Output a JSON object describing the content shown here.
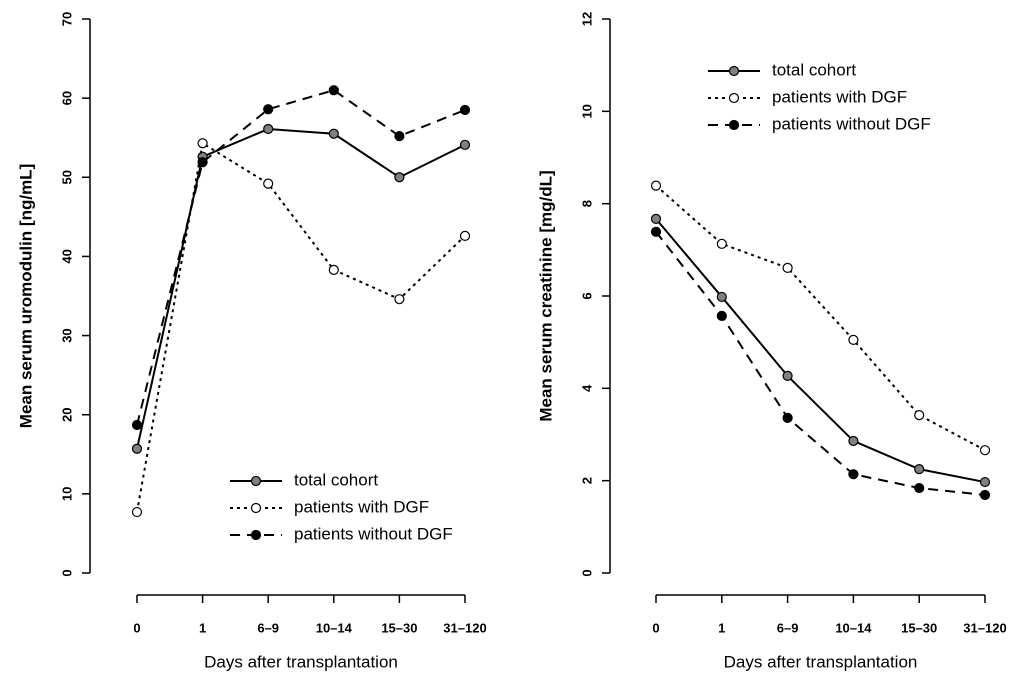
{
  "chart_data": [
    {
      "type": "line",
      "ylabel": "Mean serum uromodulin [ng/mL]",
      "xlabel": "Days after transplantation",
      "categories": [
        "0",
        "1",
        "6–9",
        "10–14",
        "15–30",
        "31–120"
      ],
      "ylim": [
        0,
        70
      ],
      "yticks": [
        0,
        10,
        20,
        30,
        40,
        50,
        60,
        70
      ],
      "legend": "lower right",
      "series": [
        {
          "name": "total cohort",
          "color": "#000000",
          "linestyle": "solid",
          "marker_fill": "#808080",
          "values": [
            15.7,
            52.6,
            56.1,
            55.5,
            50.0,
            54.1
          ]
        },
        {
          "name": "patients with DGF",
          "color": "#000000",
          "linestyle": "dotted",
          "marker_fill": "#ffffff",
          "values": [
            7.7,
            54.3,
            49.2,
            38.3,
            34.6,
            42.6
          ]
        },
        {
          "name": "patients without DGF",
          "color": "#000000",
          "linestyle": "dashed",
          "marker_fill": "#000000",
          "values": [
            18.7,
            51.9,
            58.6,
            61.0,
            55.2,
            58.5
          ]
        }
      ]
    },
    {
      "type": "line",
      "ylabel": "Mean serum creatinine [mg/dL]",
      "xlabel": "Days after transplantation",
      "categories": [
        "0",
        "1",
        "6–9",
        "10–14",
        "15–30",
        "31–120"
      ],
      "ylim": [
        0,
        12
      ],
      "yticks": [
        0,
        2,
        4,
        6,
        8,
        10,
        12
      ],
      "legend": "upper left",
      "series": [
        {
          "name": "total cohort",
          "color": "#000000",
          "linestyle": "solid",
          "marker_fill": "#808080",
          "values": [
            7.67,
            5.98,
            4.27,
            2.86,
            2.25,
            1.97
          ]
        },
        {
          "name": "patients with DGF",
          "color": "#000000",
          "linestyle": "dotted",
          "marker_fill": "#ffffff",
          "values": [
            8.39,
            7.13,
            6.61,
            5.05,
            3.42,
            2.66
          ]
        },
        {
          "name": "patients without DGF",
          "color": "#000000",
          "linestyle": "dashed",
          "marker_fill": "#000000",
          "values": [
            7.39,
            5.57,
            3.36,
            2.14,
            1.84,
            1.69
          ]
        }
      ]
    }
  ]
}
